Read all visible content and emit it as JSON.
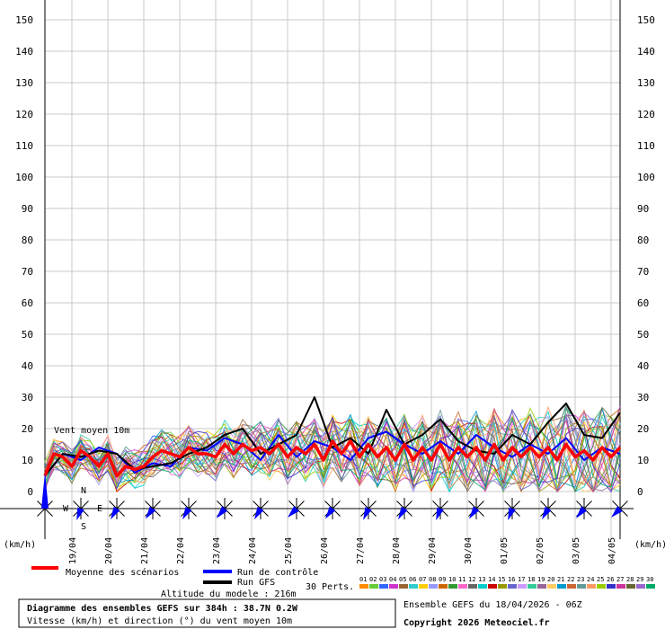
{
  "chart_data": {
    "type": "line",
    "y_ticks": [
      0,
      10,
      20,
      30,
      40,
      50,
      60,
      70,
      80,
      90,
      100,
      110,
      120,
      130,
      140,
      150
    ],
    "ylim": [
      0,
      150
    ],
    "x_range_hours": [
      0,
      384
    ],
    "y_unit_left": "(km/h)",
    "y_unit_right": "(km/h)",
    "date_labels": [
      "19/04",
      "20/04",
      "21/04",
      "22/04",
      "23/04",
      "24/04",
      "25/04",
      "26/04",
      "27/04",
      "28/04",
      "29/04",
      "30/04",
      "01/05",
      "02/05",
      "03/05",
      "04/05"
    ],
    "annotation": "Vent moyen 10m",
    "grid": true,
    "series": [
      {
        "name": "Moyenne des scénarios",
        "color": "#ff0000",
        "step_hours": 6,
        "values": [
          5,
          12,
          11,
          8,
          13,
          11,
          8,
          12,
          5,
          8,
          7,
          8,
          11,
          13,
          12,
          11,
          14,
          12,
          12,
          11,
          15,
          12,
          15,
          13,
          14,
          12,
          15,
          11,
          14,
          12,
          15,
          10,
          16,
          12,
          16,
          11,
          15,
          11,
          14,
          10,
          15,
          10,
          14,
          10,
          15,
          10,
          14,
          11,
          14,
          10,
          15,
          10,
          14,
          11,
          14,
          11,
          14,
          10,
          15,
          11,
          13,
          10,
          14,
          11,
          14,
          10,
          15,
          11,
          12,
          10,
          14,
          11,
          13,
          10,
          15,
          10,
          13,
          11,
          15,
          11,
          14,
          11,
          14,
          10,
          14,
          11,
          14,
          10,
          13,
          10,
          15,
          12,
          11,
          12,
          11,
          12,
          11,
          12,
          11,
          12,
          11,
          12,
          11,
          12,
          11,
          12,
          11,
          12,
          11,
          12,
          11,
          12,
          11,
          12,
          11,
          12,
          11,
          12,
          11,
          12,
          11,
          12,
          11,
          12,
          11,
          12,
          11,
          12,
          11,
          12,
          11,
          12,
          11,
          12,
          11,
          12,
          11,
          12,
          11,
          12,
          11,
          12,
          11,
          12,
          11,
          12,
          11,
          12,
          11,
          12,
          11,
          12,
          11,
          12,
          11,
          12,
          11,
          12,
          11,
          12,
          11,
          12,
          11,
          12,
          11,
          12,
          11,
          12,
          11,
          12,
          11,
          12,
          11,
          12,
          11,
          12,
          11,
          12,
          11,
          12,
          11,
          12,
          11,
          12,
          11,
          12,
          11,
          12,
          11,
          12,
          11,
          12,
          11,
          12,
          11,
          12,
          11,
          12,
          11,
          12,
          11,
          12,
          11,
          12,
          11,
          12,
          11,
          12,
          11,
          12,
          11,
          12,
          11,
          12,
          11,
          12,
          11,
          12,
          11,
          12,
          11,
          12,
          11,
          12,
          11,
          12,
          11,
          12,
          11,
          12,
          11,
          12,
          11,
          12,
          11,
          12,
          11,
          12,
          11,
          12,
          11,
          12,
          11,
          12,
          11,
          12,
          11,
          12,
          11,
          12,
          11,
          12,
          11,
          12,
          11,
          12,
          11,
          12,
          11,
          12,
          11,
          12,
          11,
          12,
          11,
          12,
          11,
          12,
          11,
          12,
          11,
          12,
          11,
          12,
          11,
          12,
          11,
          12,
          11,
          12,
          11,
          12,
          11,
          12,
          11,
          12,
          11,
          12,
          11,
          12,
          11,
          12,
          11,
          12,
          11,
          12,
          11,
          12,
          11,
          12,
          11,
          12,
          11,
          12,
          11,
          12,
          11,
          12,
          11,
          12,
          11,
          12,
          11,
          12,
          11,
          12,
          11,
          12,
          11,
          12,
          11,
          12,
          11,
          12,
          11,
          12,
          11,
          12,
          11,
          12,
          11,
          12,
          11,
          12,
          11,
          12,
          11,
          12,
          11,
          12,
          11,
          12,
          11,
          12,
          11,
          12,
          11,
          12,
          11,
          12,
          11,
          12,
          11,
          12,
          11,
          12,
          11,
          12,
          11,
          12,
          11,
          12,
          11,
          12,
          11,
          12,
          11,
          12,
          11,
          12,
          11,
          12,
          11,
          12,
          11,
          12,
          11,
          12,
          11,
          12,
          11,
          12,
          11,
          12,
          11,
          12,
          11,
          12,
          11,
          12,
          11,
          12,
          11,
          12,
          11,
          12,
          11,
          12,
          11,
          12,
          11,
          12
        ]
      },
      {
        "name": "Run de contrôle",
        "color": "#0000ff",
        "step_hours": 12,
        "values": [
          5,
          12,
          10,
          14,
          12,
          6,
          9,
          8,
          14,
          13,
          17,
          15,
          10,
          18,
          11,
          16,
          14,
          10,
          17,
          19,
          15,
          12,
          16,
          12,
          18,
          14,
          11,
          15,
          12,
          17,
          10,
          14,
          12,
          15,
          11,
          13,
          10,
          14,
          11,
          13,
          10,
          12,
          11,
          14,
          9,
          13,
          10,
          12,
          11,
          13,
          10,
          12,
          11,
          9,
          13,
          10,
          12,
          11,
          13,
          10,
          12,
          11,
          9,
          13,
          10,
          5
        ]
      },
      {
        "name": "Run GFS",
        "color": "#000000",
        "step_hours": 12,
        "values": [
          5,
          12,
          11,
          13,
          12,
          7,
          8,
          9,
          12,
          14,
          18,
          20,
          12,
          15,
          18,
          30,
          14,
          17,
          12,
          26,
          15,
          18,
          23,
          16,
          13,
          12,
          18,
          15,
          22,
          28,
          18,
          17,
          25,
          22,
          18,
          28,
          26,
          30,
          22,
          24,
          19,
          21,
          30,
          24,
          20,
          25,
          22,
          20,
          19,
          22,
          19,
          27,
          22,
          32,
          25,
          23,
          24,
          30,
          31,
          34,
          27,
          20,
          21,
          15,
          13,
          13
        ]
      }
    ],
    "perturbation_count": 30,
    "ensemble_label": "30 Perts.",
    "perturbation_numbers": [
      "01",
      "02",
      "03",
      "04",
      "05",
      "06",
      "07",
      "08",
      "09",
      "10",
      "11",
      "12",
      "13",
      "14",
      "15",
      "16",
      "17",
      "18",
      "19",
      "20",
      "21",
      "22",
      "23",
      "24",
      "25",
      "26",
      "27",
      "28",
      "29",
      "30"
    ],
    "perturbation_colors": [
      "#ff8c00",
      "#66cc33",
      "#3366ff",
      "#cc33cc",
      "#996633",
      "#33cccc",
      "#ffcc00",
      "#9999ff",
      "#cc6600",
      "#339933",
      "#ff66cc",
      "#666666",
      "#00cccc",
      "#cc0000",
      "#999900",
      "#6666cc",
      "#cc99ff",
      "#33cc99",
      "#996699",
      "#ffcc66",
      "#0099cc",
      "#cc6633",
      "#669999",
      "#ff9966",
      "#99cc00",
      "#3333cc",
      "#cc3399",
      "#666633",
      "#9966cc",
      "#00aa66"
    ],
    "wind_direction_deg": [
      0,
      200,
      210,
      215,
      210,
      220,
      210,
      225,
      215,
      205,
      210,
      200,
      215,
      200,
      210,
      220,
      225
    ],
    "legend": {
      "mean": "Moyenne des scénarios",
      "control": "Run de contrôle",
      "gfs": "Run GFS",
      "perts": "30 Perts."
    },
    "altitude_label": "Altitude du modele : 216m",
    "title_main": "Diagramme des ensembles GEFS sur 384h : 38.7N 0.2W",
    "title_sub": "Vitesse (km/h) et direction (°) du vent moyen 10m",
    "run_info": "Ensemble GEFS du 18/04/2026 - 06Z",
    "copyright": "Copyright 2026 Meteociel.fr",
    "compass": {
      "n": "N",
      "s": "S",
      "e": "E",
      "w": "W"
    }
  }
}
